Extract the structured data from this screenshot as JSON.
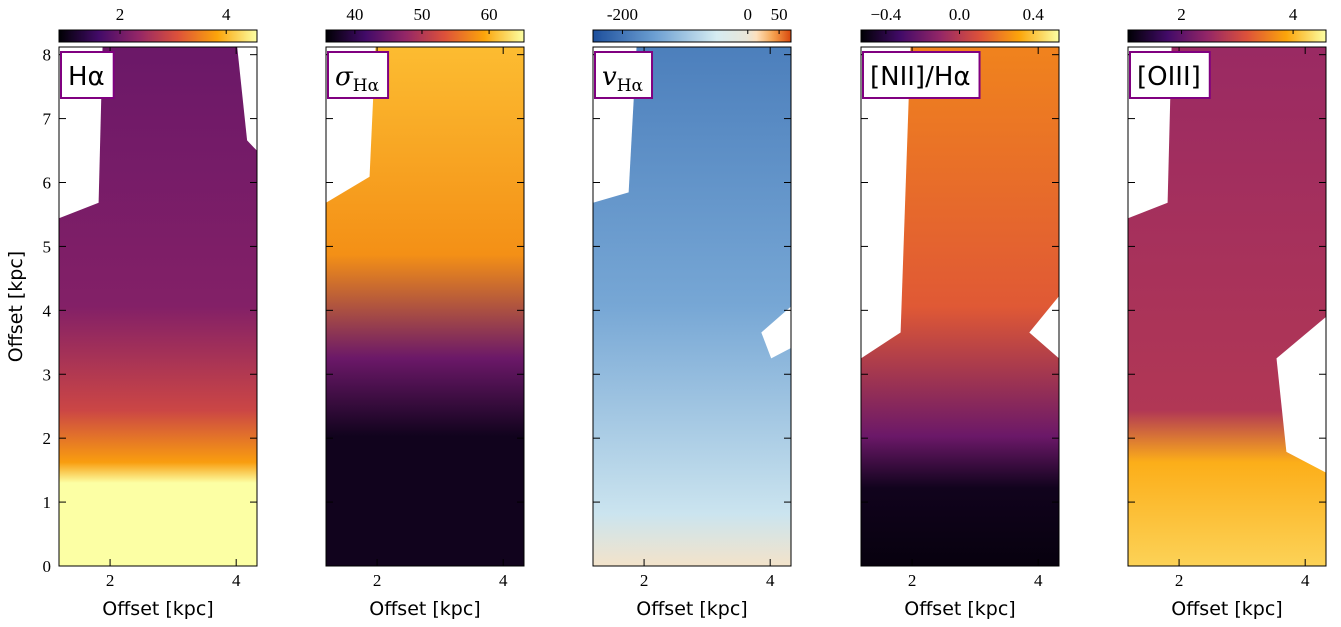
{
  "chart_data": [
    {
      "type": "heatmap",
      "title": "Hα",
      "colormap": [
        "#000004",
        "#420a68",
        "#932667",
        "#dd513a",
        "#fca50a",
        "#fcffa4"
      ],
      "clim": [
        0.85,
        4.58
      ],
      "cticks": [
        2,
        4
      ],
      "xlim": [
        1.19,
        4.33
      ],
      "xticks": [
        2,
        4
      ],
      "ylim": [
        0,
        8.12
      ],
      "yticks": [
        0,
        1,
        2,
        3,
        4,
        5,
        6,
        7,
        8
      ],
      "ytick_labels": true,
      "xlabel": "Offset [kpc]",
      "ylabel": "Offset [kpc]"
    },
    {
      "type": "heatmap",
      "title": "σ",
      "title_sub": "Hα",
      "colormap": [
        "#000004",
        "#420a68",
        "#932667",
        "#dd513a",
        "#fca50a",
        "#fcffa4"
      ],
      "clim": [
        35.7,
        65.2
      ],
      "cticks": [
        40,
        50,
        60
      ],
      "xlim": [
        1.19,
        4.33
      ],
      "xticks": [
        2,
        4
      ],
      "ylim": [
        0,
        8.12
      ],
      "yticks": [
        0,
        1,
        2,
        3,
        4,
        5,
        6,
        7,
        8
      ],
      "ytick_labels": false,
      "xlabel": "Offset [kpc]"
    },
    {
      "type": "heatmap",
      "title": "v",
      "title_sub": "Hα",
      "colormap": [
        "#1d4f9c",
        "#6c9fd2",
        "#d6ecf2",
        "#fde0bd",
        "#f5a04a",
        "#d8470e"
      ],
      "clim": [
        -247,
        69
      ],
      "center": 0,
      "cticks": [
        -200,
        0,
        50
      ],
      "xlim": [
        1.19,
        4.33
      ],
      "xticks": [
        2,
        4
      ],
      "ylim": [
        0,
        8.12
      ],
      "yticks": [
        0,
        1,
        2,
        3,
        4,
        5,
        6,
        7,
        8
      ],
      "ytick_labels": false,
      "xlabel": "Offset [kpc]"
    },
    {
      "type": "heatmap",
      "title": "[NII]/Hα",
      "colormap": [
        "#000004",
        "#420a68",
        "#932667",
        "#dd513a",
        "#fca50a",
        "#fcffa4"
      ],
      "clim": [
        -0.535,
        0.54
      ],
      "center": 0,
      "cticks": [
        {
          "value": -0.4,
          "label": "−0.4"
        },
        {
          "value": 0,
          "label": "0.0"
        },
        0.4
      ],
      "xlim": [
        1.19,
        4.33
      ],
      "xticks": [
        2,
        4
      ],
      "ylim": [
        0,
        8.12
      ],
      "yticks": [
        0,
        1,
        2,
        3,
        4,
        5,
        6,
        7,
        8
      ],
      "ytick_labels": false,
      "xlabel": "Offset [kpc]"
    },
    {
      "type": "heatmap",
      "title": "[OIII]",
      "colormap": [
        "#000004",
        "#420a68",
        "#932667",
        "#dd513a",
        "#fca50a",
        "#fcffa4"
      ],
      "clim": [
        1.04,
        4.59
      ],
      "cticks": [
        2,
        4
      ],
      "xlim": [
        1.19,
        4.33
      ],
      "xticks": [
        2,
        4
      ],
      "ylim": [
        0,
        8.12
      ],
      "yticks": [
        0,
        1,
        2,
        3,
        4,
        5,
        6,
        7,
        8
      ],
      "ytick_labels": false,
      "xlabel": "Offset [kpc]"
    }
  ]
}
